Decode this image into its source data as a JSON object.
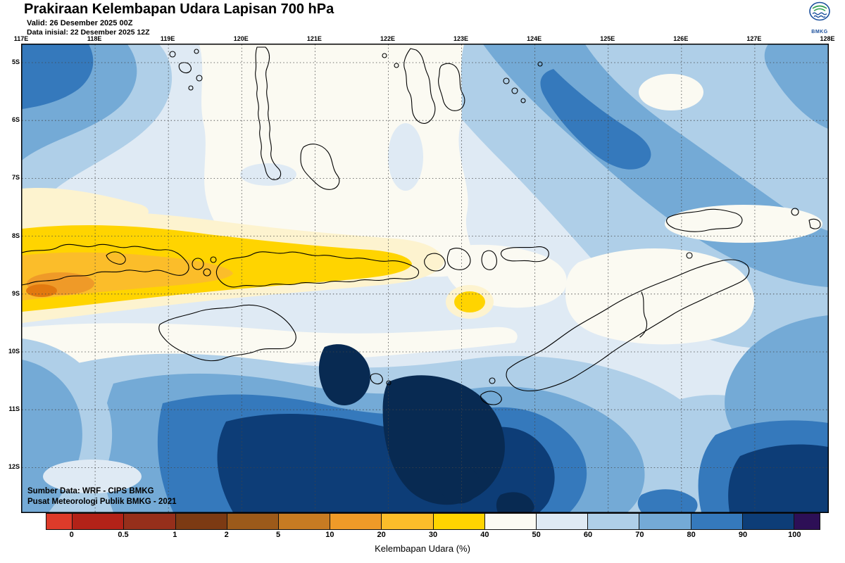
{
  "header": {
    "title": "Prakiraan Kelembapan Udara Lapisan 700 hPa",
    "valid_line": "Valid: 26 Desember 2025 00Z",
    "init_line": "Data inisial: 22 Desember 2025 12Z",
    "logo_text": "BMKG"
  },
  "map": {
    "lon_labels": [
      "117E",
      "118E",
      "119E",
      "120E",
      "121E",
      "122E",
      "123E",
      "124E",
      "125E",
      "126E",
      "127E",
      "128E"
    ],
    "lat_labels": [
      "5S",
      "6S",
      "7S",
      "8S",
      "9S",
      "10S",
      "11S",
      "12S"
    ],
    "source_line1": "Sumber Data: WRF - CIPS BMKG",
    "source_line2": "Pusat Meteorologi Publik BMKG - 2021"
  },
  "colorbar": {
    "caption": "Kelembapan Udara (%)",
    "tick_labels": [
      "0",
      "0.5",
      "1",
      "2",
      "5",
      "10",
      "20",
      "30",
      "40",
      "50",
      "60",
      "70",
      "80",
      "90",
      "100"
    ],
    "segment_colors": [
      "#dd3b2a",
      "#b22218",
      "#962f1b",
      "#7c3a13",
      "#9c5a1a",
      "#c77b22",
      "#ef9a28",
      "#fbbd2a",
      "#ffd400",
      "#fbfaf2",
      "#dfeaf4",
      "#afcfe8",
      "#74aad6",
      "#3579bc",
      "#0d3d77",
      "#2d0f56"
    ]
  }
}
